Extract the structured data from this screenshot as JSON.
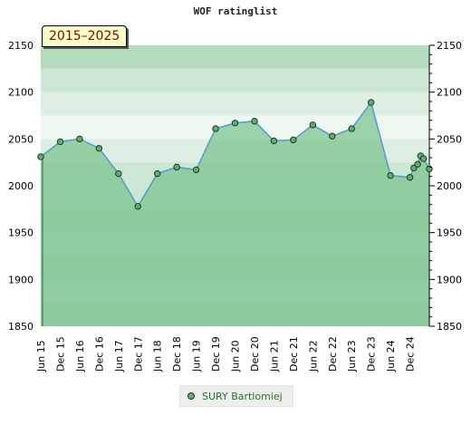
{
  "title": "WOF ratinglist",
  "period_label": "2015–2025",
  "legend": {
    "series_name": "SURY Bartlomiej"
  },
  "colors": {
    "line": "#5b9bd5",
    "marker_fill": "#5fae73",
    "marker_stroke": "#1a3c1a",
    "fill": "#7cc48e",
    "band_dark": "#b3dbbe",
    "band_mid": "#cde7d5",
    "band_light": "#deeee3",
    "band_lightest": "#eff7f1"
  },
  "chart_data": {
    "type": "area",
    "title": "WOF ratinglist",
    "xlabel": "",
    "ylabel": "",
    "ylim": [
      1850,
      2150
    ],
    "yticks": [
      1850,
      1900,
      1950,
      2000,
      2050,
      2100,
      2150
    ],
    "grid": false,
    "legend_position": "bottom-center",
    "xlim": [
      0,
      20
    ],
    "x_tick_labels": [
      "Jun 15",
      "Dec 15",
      "Jun 16",
      "Dec 16",
      "Jun 17",
      "Dec 17",
      "Jun 18",
      "Dec 18",
      "Jun 19",
      "Dec 19",
      "Jun 20",
      "Dec 20",
      "Jun 21",
      "Dec 21",
      "Jun 22",
      "Dec 22",
      "Jun 23",
      "Dec 23",
      "Jun 24",
      "Dec 24"
    ],
    "series": [
      {
        "name": "SURY Bartlomiej",
        "x": [
          0,
          1,
          2,
          3,
          4,
          5,
          6,
          7,
          8,
          9,
          10,
          11,
          12,
          13,
          14,
          15,
          16,
          17,
          18,
          19,
          19.2,
          19.4,
          19.55,
          19.7,
          20
        ],
        "values": [
          2031,
          2047,
          2050,
          2040,
          2013,
          1978,
          2013,
          2020,
          2017,
          2061,
          2067,
          2069,
          2048,
          2049,
          2065,
          2053,
          2061,
          2089,
          2011,
          2009,
          2019,
          2023,
          2032,
          2029,
          2018
        ]
      }
    ]
  }
}
